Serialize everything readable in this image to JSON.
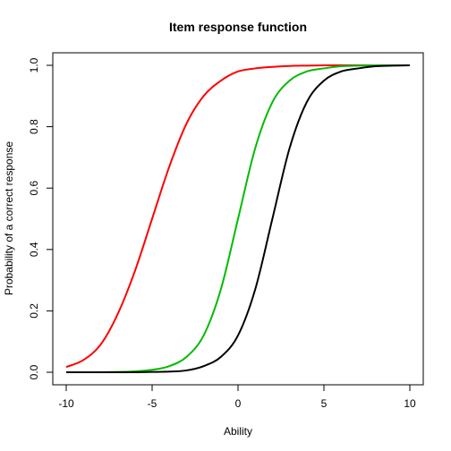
{
  "chart_data": {
    "type": "line",
    "title": "Item response function",
    "xlabel": "Ability",
    "ylabel": "Probability of a correct response",
    "xlim": [
      -10,
      10
    ],
    "ylim": [
      0,
      1
    ],
    "xticks": [
      -10,
      -5,
      0,
      5,
      10
    ],
    "yticks": [
      0.0,
      0.2,
      0.4,
      0.6,
      0.8,
      1.0
    ],
    "xtick_labels": [
      "-10",
      "-5",
      "0",
      "5",
      "10"
    ],
    "ytick_labels": [
      "0.0",
      "0.2",
      "0.4",
      "0.6",
      "0.8",
      "1.0"
    ],
    "grid": false,
    "legend": "none",
    "x": [
      -10,
      -9,
      -8,
      -7,
      -6,
      -5,
      -4,
      -3,
      -2,
      -1,
      0,
      1,
      2,
      3,
      4,
      5,
      6,
      7,
      8,
      9,
      10
    ],
    "series": [
      {
        "color": "#ff0000",
        "values": [
          0.017,
          0.04,
          0.09,
          0.19,
          0.33,
          0.5,
          0.67,
          0.81,
          0.9,
          0.95,
          0.98,
          0.99,
          0.995,
          0.998,
          0.999,
          1.0,
          1.0,
          1.0,
          1.0,
          1.0,
          1.0
        ]
      },
      {
        "color": "#00bb00",
        "values": [
          0.0,
          0.0,
          0.0,
          0.001,
          0.003,
          0.008,
          0.02,
          0.05,
          0.12,
          0.27,
          0.5,
          0.73,
          0.88,
          0.95,
          0.98,
          0.99,
          0.997,
          0.999,
          1.0,
          1.0,
          1.0
        ]
      },
      {
        "color": "#000000",
        "values": [
          0.0,
          0.0,
          0.0,
          0.0,
          0.0,
          0.001,
          0.002,
          0.006,
          0.02,
          0.05,
          0.12,
          0.27,
          0.5,
          0.73,
          0.88,
          0.95,
          0.98,
          0.99,
          0.997,
          0.999,
          1.0
        ]
      }
    ]
  }
}
